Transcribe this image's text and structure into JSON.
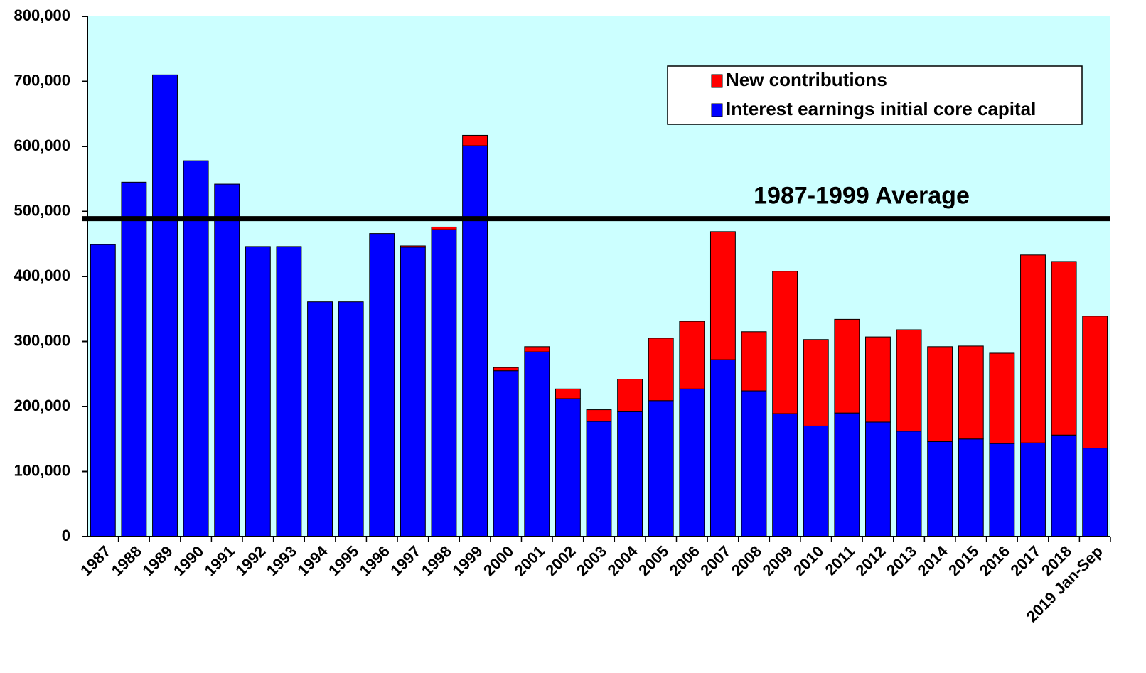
{
  "chart_data": {
    "type": "stacked_bar",
    "categories": [
      "1987",
      "1988",
      "1989",
      "1990",
      "1991",
      "1992",
      "1993",
      "1994",
      "1995",
      "1996",
      "1997",
      "1998",
      "1999",
      "2000",
      "2001",
      "2002",
      "2003",
      "2004",
      "2005",
      "2006",
      "2007",
      "2008",
      "2009",
      "2010",
      "2011",
      "2012",
      "2013",
      "2014",
      "2015",
      "2016",
      "2017",
      "2018",
      "2019 Jan-Sep"
    ],
    "series": [
      {
        "name": "Interest earnings initial core capital",
        "color": "#0000ff",
        "values": [
          449000,
          545000,
          710000,
          578000,
          542000,
          446000,
          446000,
          361000,
          361000,
          466000,
          445000,
          472000,
          601000,
          255000,
          284000,
          212000,
          177000,
          192000,
          209000,
          227000,
          272000,
          224000,
          189000,
          170000,
          190000,
          176000,
          162000,
          146000,
          150000,
          143000,
          144000,
          156000,
          136000
        ]
      },
      {
        "name": "New contributions",
        "color": "#ff0000",
        "values": [
          0,
          0,
          0,
          0,
          0,
          0,
          0,
          0,
          0,
          0,
          2000,
          4000,
          16000,
          5000,
          8000,
          15000,
          18000,
          50000,
          96000,
          104000,
          197000,
          91000,
          219000,
          133000,
          144000,
          131000,
          156000,
          146000,
          143000,
          139000,
          289000,
          267000,
          203000
        ]
      }
    ],
    "ylim": [
      0,
      800000
    ],
    "yticks": [
      0,
      {
        "value": 100000,
        "label": "100,000"
      },
      {
        "value": 200000,
        "label": "200,000"
      },
      {
        "value": 300000,
        "label": "300,000"
      },
      {
        "value": 400000,
        "label": "400,000"
      },
      {
        "value": 500000,
        "label": "500,000"
      },
      {
        "value": 600000,
        "label": "600,000"
      },
      {
        "value": 700000,
        "label": "700,000"
      },
      {
        "value": 800000,
        "label": "800,000"
      }
    ],
    "average_line": {
      "label": "1987-1999 Average",
      "value": 489000
    },
    "background": "#ccffff",
    "legend": "top-right"
  }
}
